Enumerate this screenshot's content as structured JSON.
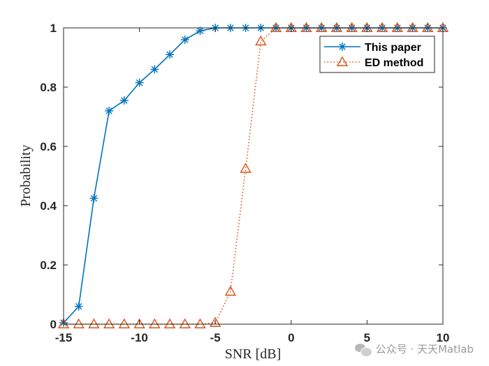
{
  "chart_data": {
    "type": "line",
    "xlabel": "SNR [dB]",
    "ylabel": "Probability",
    "xlim": [
      -15,
      10
    ],
    "ylim": [
      0,
      1
    ],
    "xticks": [
      -15,
      -10,
      -5,
      0,
      5,
      10
    ],
    "yticks": [
      0,
      0.2,
      0.4,
      0.6,
      0.8,
      1
    ],
    "grid": false,
    "legend_position": "top-right",
    "x": [
      -15,
      -14,
      -13,
      -12,
      -11,
      -10,
      -9,
      -8,
      -7,
      -6,
      -5,
      -4,
      -3,
      -2,
      -1,
      0,
      1,
      2,
      3,
      4,
      5,
      6,
      7,
      8,
      9,
      10
    ],
    "series": [
      {
        "name": "This paper",
        "color": "#0072BD",
        "marker": "asterisk",
        "line_style": "solid",
        "values": [
          0.005,
          0.06,
          0.425,
          0.72,
          0.755,
          0.815,
          0.86,
          0.91,
          0.96,
          0.99,
          1,
          1,
          1,
          1,
          1,
          1,
          1,
          1,
          1,
          1,
          1,
          1,
          1,
          1,
          1,
          1
        ]
      },
      {
        "name": "ED method",
        "color": "#D95319",
        "marker": "triangle",
        "line_style": "dotted",
        "values": [
          0,
          0,
          0,
          0,
          0,
          0,
          0,
          0,
          0,
          0,
          0.005,
          0.11,
          0.525,
          0.955,
          1,
          1,
          1,
          1,
          1,
          1,
          1,
          1,
          1,
          1,
          1,
          1
        ]
      }
    ]
  },
  "watermark": {
    "text": "公众号 · 天天Matlab",
    "icon": "wechat-icon"
  }
}
